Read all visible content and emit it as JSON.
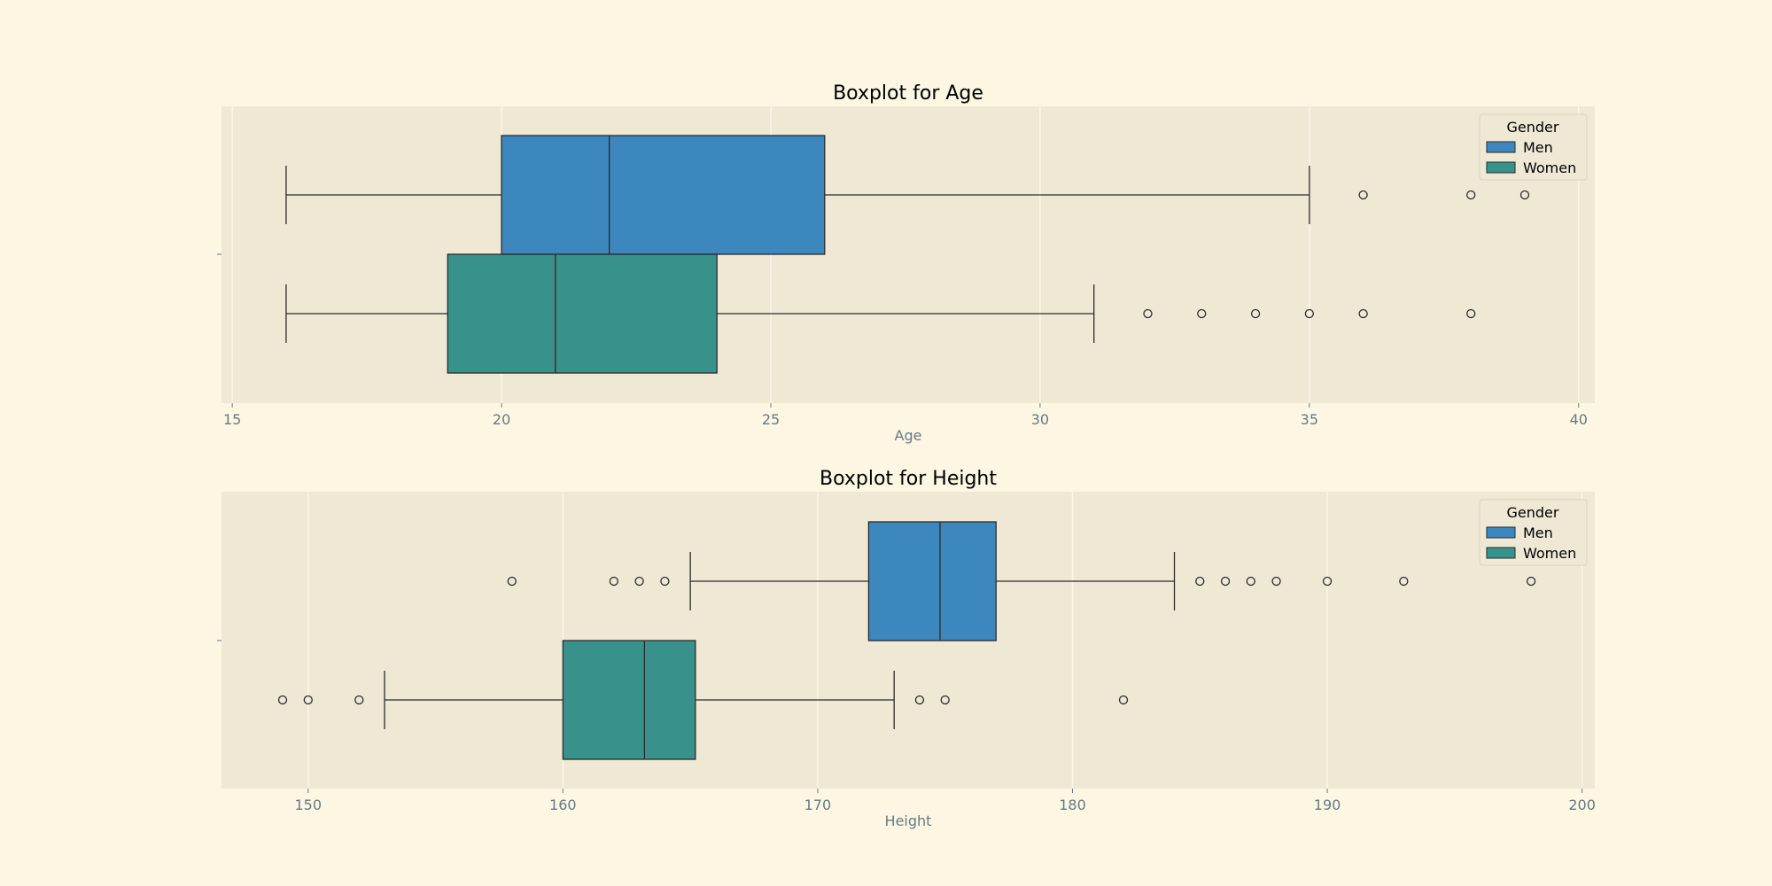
{
  "chart_data": [
    {
      "type": "boxplot",
      "title": "Boxplot for Age",
      "xlabel": "Age",
      "ylabel": "",
      "xlim": [
        14.8,
        40.3
      ],
      "ticks": [
        15,
        20,
        25,
        30,
        35,
        40
      ],
      "grid": true,
      "legend": {
        "title": "Gender",
        "placement": "top-right"
      },
      "series": [
        {
          "name": "Men",
          "color": "#3c87bd",
          "whisker_low": 16,
          "q1": 20,
          "median": 22,
          "q3": 26,
          "whisker_high": 35,
          "outliers": [
            36,
            38,
            39
          ]
        },
        {
          "name": "Women",
          "color": "#38918a",
          "whisker_low": 16,
          "q1": 19,
          "median": 21,
          "q3": 24,
          "whisker_high": 31,
          "outliers": [
            32,
            33,
            34,
            35,
            36,
            38
          ]
        }
      ]
    },
    {
      "type": "boxplot",
      "title": "Boxplot for Height",
      "xlabel": "Height",
      "ylabel": "",
      "xlim": [
        146.6,
        200.5
      ],
      "ticks": [
        150,
        160,
        170,
        180,
        190,
        200
      ],
      "grid": true,
      "legend": {
        "title": "Gender",
        "placement": "top-right"
      },
      "series": [
        {
          "name": "Men",
          "color": "#3c87bd",
          "whisker_low": 165,
          "q1": 172,
          "median": 174.8,
          "q3": 177,
          "whisker_high": 184,
          "outliers": [
            158,
            162,
            163,
            164,
            185,
            186,
            187,
            188,
            190,
            193,
            198
          ]
        },
        {
          "name": "Women",
          "color": "#38918a",
          "whisker_low": 153,
          "q1": 160,
          "median": 163.2,
          "q3": 165.2,
          "whisker_high": 173,
          "outliers": [
            149,
            150,
            152,
            174,
            175,
            182
          ]
        }
      ]
    }
  ]
}
